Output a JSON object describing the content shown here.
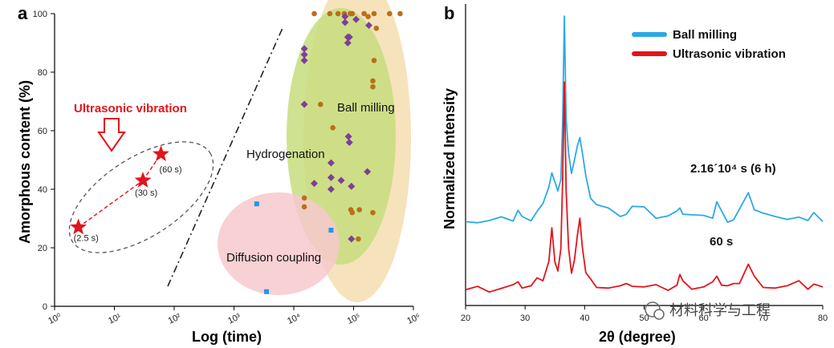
{
  "chart_data": [
    {
      "panel": "a",
      "type": "scatter",
      "xlabel": "Log (time)",
      "ylabel": "Amorphous content (%)",
      "x_scale": "log",
      "xlim": [
        1,
        1000000
      ],
      "ylim": [
        0,
        100
      ],
      "x_ticks": [
        1,
        10,
        100,
        1000,
        10000,
        100000,
        1000000
      ],
      "x_tick_labels": [
        "10⁰",
        "10¹",
        "10²",
        "10³",
        "10⁴",
        "10⁵",
        "10⁶"
      ],
      "y_ticks": [
        0,
        20,
        40,
        60,
        80,
        100
      ],
      "region_labels": {
        "ball_milling": "Ball milling",
        "hydrogenation": "Hydrogenation",
        "diffusion_coupling": "Diffusion coupling",
        "ultrasonic": "Ultrasonic vibration"
      },
      "ultrasonic_points": [
        {
          "x": 2.5,
          "y": 27,
          "label": "(2.5 s)"
        },
        {
          "x": 30,
          "y": 43,
          "label": "(30 s)"
        },
        {
          "x": 60,
          "y": 52,
          "label": "(60 s)"
        }
      ],
      "diffusion_points": [
        {
          "x": 2400,
          "y": 35
        },
        {
          "x": 3500,
          "y": 5
        },
        {
          "x": 42000,
          "y": 26
        }
      ],
      "ball_milling_points": [
        {
          "x": 22000,
          "y": 100
        },
        {
          "x": 40000,
          "y": 100
        },
        {
          "x": 55000,
          "y": 100
        },
        {
          "x": 70000,
          "y": 100
        },
        {
          "x": 88000,
          "y": 100
        },
        {
          "x": 95000,
          "y": 100
        },
        {
          "x": 150000,
          "y": 100
        },
        {
          "x": 175000,
          "y": 99
        },
        {
          "x": 220000,
          "y": 100
        },
        {
          "x": 400000,
          "y": 100
        },
        {
          "x": 600000,
          "y": 100
        },
        {
          "x": 240000,
          "y": 95
        },
        {
          "x": 220000,
          "y": 84
        },
        {
          "x": 210000,
          "y": 77
        },
        {
          "x": 210000,
          "y": 75
        },
        {
          "x": 28000,
          "y": 69
        },
        {
          "x": 45000,
          "y": 61
        },
        {
          "x": 15000,
          "y": 37
        },
        {
          "x": 15000,
          "y": 34
        },
        {
          "x": 90000,
          "y": 33
        },
        {
          "x": 95000,
          "y": 32
        },
        {
          "x": 125000,
          "y": 33
        },
        {
          "x": 210000,
          "y": 32
        },
        {
          "x": 120000,
          "y": 23
        }
      ],
      "hydrogenation_points": [
        {
          "x": 15000,
          "y": 88
        },
        {
          "x": 15000,
          "y": 86
        },
        {
          "x": 15000,
          "y": 84
        },
        {
          "x": 15000,
          "y": 69
        },
        {
          "x": 72000,
          "y": 99
        },
        {
          "x": 72000,
          "y": 97
        },
        {
          "x": 80000,
          "y": 92
        },
        {
          "x": 80000,
          "y": 90
        },
        {
          "x": 85000,
          "y": 92
        },
        {
          "x": 180000,
          "y": 96
        },
        {
          "x": 110000,
          "y": 98
        },
        {
          "x": 82000,
          "y": 58
        },
        {
          "x": 85000,
          "y": 56
        },
        {
          "x": 42000,
          "y": 49
        },
        {
          "x": 42000,
          "y": 44
        },
        {
          "x": 62000,
          "y": 43
        },
        {
          "x": 42000,
          "y": 40
        },
        {
          "x": 92000,
          "y": 41
        },
        {
          "x": 170000,
          "y": 46
        },
        {
          "x": 22000,
          "y": 42
        },
        {
          "x": 92000,
          "y": 23
        }
      ]
    },
    {
      "panel": "b",
      "type": "line",
      "xlabel": "2θ (degree)",
      "ylabel": "Normalized Intensity",
      "xlim": [
        20,
        80
      ],
      "x_ticks": [
        20,
        30,
        40,
        50,
        60,
        70,
        80
      ],
      "legend_position": "top-right",
      "series": [
        {
          "name": "Ball milling",
          "color": "#2ba9e6",
          "annotation": "2.16´10⁴ s (6 h)",
          "x": [
            20,
            22,
            24,
            26,
            28,
            28.8,
            29.5,
            31,
            32,
            33,
            34,
            34.5,
            35,
            35.5,
            36,
            36.3,
            36.6,
            36.9,
            37.3,
            37.8,
            38.3,
            38.8,
            39.2,
            39.6,
            40.2,
            41,
            42,
            44,
            46,
            47,
            48,
            50,
            52,
            54,
            55.5,
            56,
            56.5,
            58,
            60,
            61.5,
            62.2,
            63,
            64,
            65,
            66,
            67.5,
            68.5,
            70,
            72,
            74,
            76,
            77.5,
            78.5,
            80
          ],
          "y": [
            0.27,
            0.27,
            0.27,
            0.275,
            0.28,
            0.31,
            0.28,
            0.285,
            0.31,
            0.33,
            0.38,
            0.45,
            0.41,
            0.37,
            0.43,
            0.62,
            0.99,
            0.62,
            0.52,
            0.44,
            0.48,
            0.55,
            0.57,
            0.51,
            0.42,
            0.36,
            0.33,
            0.31,
            0.3,
            0.3,
            0.32,
            0.31,
            0.29,
            0.29,
            0.3,
            0.33,
            0.3,
            0.29,
            0.28,
            0.29,
            0.34,
            0.3,
            0.28,
            0.28,
            0.31,
            0.36,
            0.32,
            0.3,
            0.28,
            0.29,
            0.29,
            0.27,
            0.29,
            0.27
          ]
        },
        {
          "name": "Ultrasonic vibration",
          "color": "#e1151c",
          "annotation": "60 s",
          "x": [
            20,
            22,
            24,
            26,
            28,
            28.8,
            29.5,
            31,
            32,
            33,
            34,
            34.5,
            35,
            35.5,
            36,
            36.3,
            36.6,
            36.9,
            37.3,
            37.8,
            38.3,
            38.8,
            39.2,
            39.6,
            40.2,
            41,
            42,
            44,
            46,
            47,
            48,
            50,
            52,
            54,
            55.5,
            56,
            56.5,
            58,
            60,
            61.5,
            62.2,
            63,
            64,
            65,
            66,
            67.5,
            68.5,
            70,
            72,
            74,
            76,
            77.5,
            78.5,
            80
          ],
          "y": [
            0.03,
            0.03,
            0.03,
            0.035,
            0.04,
            0.07,
            0.04,
            0.04,
            0.06,
            0.07,
            0.13,
            0.24,
            0.14,
            0.1,
            0.17,
            0.4,
            0.77,
            0.38,
            0.17,
            0.1,
            0.14,
            0.22,
            0.27,
            0.19,
            0.09,
            0.06,
            0.05,
            0.04,
            0.04,
            0.04,
            0.05,
            0.04,
            0.04,
            0.04,
            0.05,
            0.08,
            0.05,
            0.04,
            0.04,
            0.05,
            0.09,
            0.05,
            0.04,
            0.04,
            0.06,
            0.12,
            0.07,
            0.05,
            0.04,
            0.04,
            0.05,
            0.04,
            0.05,
            0.04
          ]
        }
      ]
    }
  ],
  "panel_letters": [
    "a",
    "b"
  ],
  "watermark": "材料科学与工程"
}
